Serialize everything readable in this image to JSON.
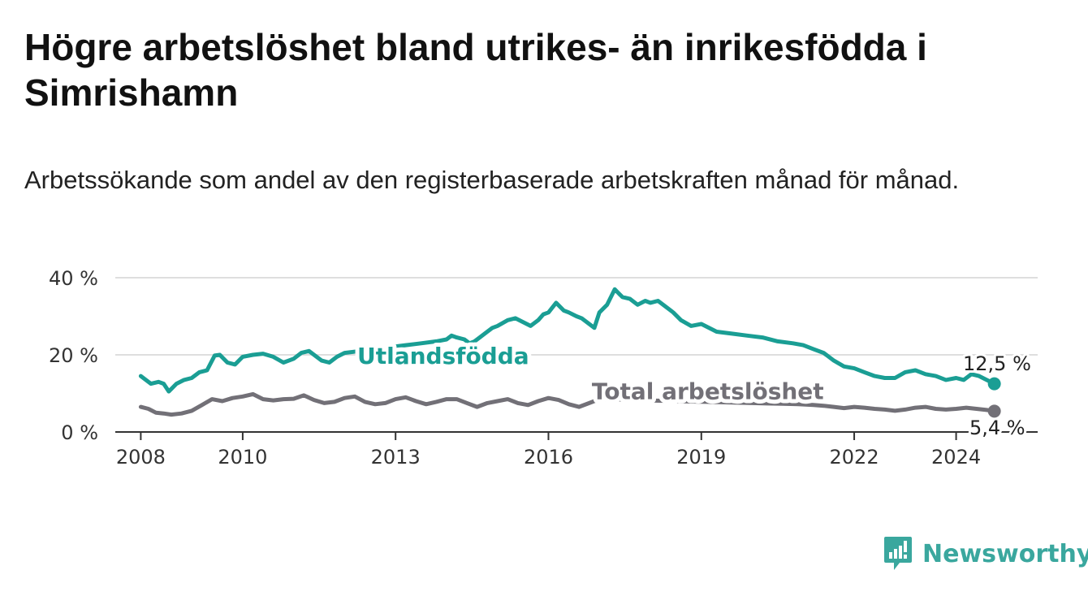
{
  "title": "Högre arbetslöshet bland utrikes- än inrikesfödda i Simrishamn",
  "subtitle": "Arbetssökande som andel av den registerbaserade arbetskraften månad för månad.",
  "brand": "Newsworthy",
  "colors": {
    "utland": "#1a9e94",
    "total": "#727077",
    "grid": "#dedede",
    "axis": "#333333",
    "brand": "#3aa79e"
  },
  "chart_data": {
    "type": "line",
    "title": "Högre arbetslöshet bland utrikes- än inrikesfödda i Simrishamn",
    "xlabel": "",
    "ylabel": "",
    "xlim": [
      2007.5,
      2025.6
    ],
    "ylim": [
      0,
      40
    ],
    "grid": true,
    "y_ticks": [
      {
        "value": 0,
        "label": "0 %"
      },
      {
        "value": 20,
        "label": "20 %"
      },
      {
        "value": 40,
        "label": "40 %"
      }
    ],
    "x_ticks": [
      {
        "value": 2008,
        "label": "2008"
      },
      {
        "value": 2010,
        "label": "2010"
      },
      {
        "value": 2013,
        "label": "2013"
      },
      {
        "value": 2016,
        "label": "2016"
      },
      {
        "value": 2019,
        "label": "2019"
      },
      {
        "value": 2022,
        "label": "2022"
      },
      {
        "value": 2024,
        "label": "2024"
      }
    ],
    "series": [
      {
        "name": "Utlandsfödda",
        "label_at": [
          2007.5,
          19.8
        ],
        "end_label": "12,5 %",
        "end_value": 12.5,
        "x": [
          2008.0,
          2008.2,
          2008.35,
          2008.45,
          2008.55,
          2008.7,
          2008.85,
          2009.0,
          2009.15,
          2009.3,
          2009.45,
          2009.55,
          2009.7,
          2009.85,
          2010.0,
          2010.2,
          2010.4,
          2010.6,
          2010.8,
          2011.0,
          2011.15,
          2011.3,
          2011.45,
          2011.55,
          2011.7,
          2011.85,
          2012.0,
          2012.3,
          2012.6,
          2012.9,
          2013.2,
          2013.5,
          2013.8,
          2014.0,
          2014.1,
          2014.2,
          2014.35,
          2014.45,
          2014.55,
          2014.65,
          2014.75,
          2014.9,
          2015.0,
          2015.2,
          2015.35,
          2015.5,
          2015.65,
          2015.8,
          2015.9,
          2016.0,
          2016.15,
          2016.3,
          2016.4,
          2016.55,
          2016.65,
          2016.8,
          2016.9,
          2017.0,
          2017.15,
          2017.3,
          2017.45,
          2017.6,
          2017.75,
          2017.9,
          2018.0,
          2018.15,
          2018.3,
          2018.45,
          2018.6,
          2018.8,
          2019.0,
          2019.3,
          2019.6,
          2019.9,
          2020.2,
          2020.5,
          2020.8,
          2021.0,
          2021.2,
          2021.4,
          2021.6,
          2021.8,
          2022.0,
          2022.2,
          2022.4,
          2022.6,
          2022.8,
          2023.0,
          2023.2,
          2023.4,
          2023.6,
          2023.8,
          2024.0,
          2024.15,
          2024.3,
          2024.45,
          2024.6,
          2024.75
        ],
        "values": [
          14.5,
          12.5,
          13.0,
          12.5,
          10.5,
          12.5,
          13.5,
          14.0,
          15.5,
          16.0,
          19.8,
          20.0,
          18.0,
          17.5,
          19.5,
          20.0,
          20.3,
          19.5,
          18.0,
          19.0,
          20.5,
          21.0,
          19.5,
          18.5,
          18.0,
          19.5,
          20.5,
          21.0,
          21.5,
          22.0,
          22.5,
          23.0,
          23.5,
          24.0,
          25.0,
          24.5,
          24.0,
          23.0,
          23.5,
          24.5,
          25.5,
          27.0,
          27.5,
          29.0,
          29.5,
          28.5,
          27.5,
          29.0,
          30.5,
          31.0,
          33.5,
          31.5,
          31.0,
          30.0,
          29.5,
          28.0,
          27.0,
          31.0,
          33.0,
          37.0,
          35.0,
          34.5,
          33.0,
          34.0,
          33.5,
          34.0,
          32.5,
          31.0,
          29.0,
          27.5,
          28.0,
          26.0,
          25.5,
          25.0,
          24.5,
          23.5,
          23.0,
          22.5,
          21.5,
          20.5,
          18.5,
          17.0,
          16.5,
          15.5,
          14.5,
          14.0,
          14.0,
          15.5,
          16.0,
          15.0,
          14.5,
          13.5,
          14.0,
          13.5,
          15.0,
          14.5,
          13.5,
          12.5
        ]
      },
      {
        "name": "Total arbetslöshet",
        "label_at": [
          2016.85,
          8.5
        ],
        "end_label": "5,4 %",
        "end_value": 5.4,
        "x": [
          2008.0,
          2008.15,
          2008.3,
          2008.45,
          2008.6,
          2008.8,
          2009.0,
          2009.2,
          2009.4,
          2009.6,
          2009.8,
          2010.0,
          2010.2,
          2010.4,
          2010.6,
          2010.8,
          2011.0,
          2011.2,
          2011.4,
          2011.6,
          2011.8,
          2012.0,
          2012.2,
          2012.4,
          2012.6,
          2012.8,
          2013.0,
          2013.2,
          2013.4,
          2013.6,
          2013.8,
          2014.0,
          2014.2,
          2014.4,
          2014.6,
          2014.8,
          2015.0,
          2015.2,
          2015.4,
          2015.6,
          2015.8,
          2016.0,
          2016.2,
          2016.4,
          2016.6,
          2016.8,
          2017.0,
          2017.3,
          2017.6,
          2017.9,
          2018.2,
          2018.5,
          2018.8,
          2019.1,
          2019.4,
          2019.7,
          2020.0,
          2020.3,
          2020.6,
          2020.9,
          2021.2,
          2021.4,
          2021.6,
          2021.8,
          2022.0,
          2022.2,
          2022.4,
          2022.6,
          2022.8,
          2023.0,
          2023.2,
          2023.4,
          2023.6,
          2023.8,
          2024.0,
          2024.2,
          2024.4,
          2024.6,
          2024.75
        ],
        "values": [
          6.5,
          6.0,
          5.0,
          4.8,
          4.5,
          4.8,
          5.5,
          7.0,
          8.5,
          8.0,
          8.8,
          9.2,
          9.8,
          8.5,
          8.2,
          8.5,
          8.6,
          9.5,
          8.3,
          7.5,
          7.8,
          8.8,
          9.2,
          7.8,
          7.2,
          7.5,
          8.5,
          9.0,
          8.0,
          7.2,
          7.8,
          8.5,
          8.5,
          7.5,
          6.5,
          7.5,
          8.0,
          8.5,
          7.5,
          7.0,
          8.0,
          8.8,
          8.3,
          7.2,
          6.5,
          7.5,
          8.5,
          8.5,
          8.3,
          8.2,
          8.1,
          8.0,
          7.9,
          7.8,
          7.7,
          7.6,
          7.5,
          7.4,
          7.3,
          7.2,
          7.0,
          6.8,
          6.5,
          6.2,
          6.5,
          6.3,
          6.0,
          5.8,
          5.5,
          5.8,
          6.3,
          6.5,
          6.0,
          5.8,
          6.0,
          6.3,
          6.0,
          5.7,
          5.4
        ]
      }
    ]
  }
}
